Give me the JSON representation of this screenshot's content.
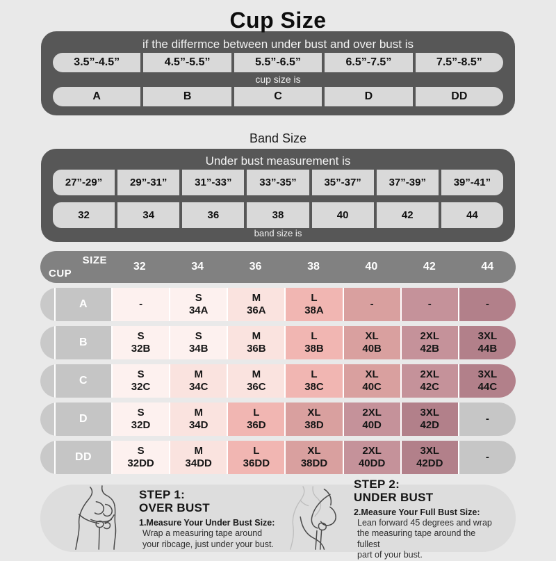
{
  "page": {
    "title": "Cup Size"
  },
  "cup_table": {
    "header": "if the differmce between under bust and over bust is",
    "ranges": [
      "3.5”-4.5”",
      "4.5”-5.5”",
      "5.5”-6.5”",
      "6.5”-7.5”",
      "7.5”-8.5”"
    ],
    "mid_label": "cup size is",
    "cups": [
      "A",
      "B",
      "C",
      "D",
      "DD"
    ]
  },
  "band_section": {
    "title": "Band Size",
    "header": "Under bust measurement is",
    "ranges": [
      "27”-29”",
      "29”-31”",
      "31”-33”",
      "33”-35”",
      "35”-37”",
      "37”-39”",
      "39”-41”"
    ],
    "bands": [
      "32",
      "34",
      "36",
      "38",
      "40",
      "42",
      "44"
    ],
    "footer_label": "band size is"
  },
  "size_matrix": {
    "corner": {
      "top": "SIZE",
      "bottom": "CUP"
    },
    "columns": [
      "32",
      "34",
      "36",
      "38",
      "40",
      "42",
      "44"
    ],
    "palette": {
      "s": "#fdf1ef",
      "m": "#fae3df",
      "l": "#f1b6b2",
      "xl": "#d9a09f",
      "xxl": "#c5929a",
      "xxxl": "#b2808a",
      "gray": "#c6c6c6"
    },
    "rows": [
      {
        "cup": "A",
        "cells": [
          {
            "size": "-",
            "code": "",
            "color": "s"
          },
          {
            "size": "S",
            "code": "34A",
            "color": "s"
          },
          {
            "size": "M",
            "code": "36A",
            "color": "m"
          },
          {
            "size": "L",
            "code": "38A",
            "color": "l"
          },
          {
            "size": "-",
            "code": "",
            "color": "xl"
          },
          {
            "size": "-",
            "code": "",
            "color": "xxl"
          },
          {
            "size": "-",
            "code": "",
            "color": "xxxl"
          }
        ]
      },
      {
        "cup": "B",
        "cells": [
          {
            "size": "S",
            "code": "32B",
            "color": "s"
          },
          {
            "size": "S",
            "code": "34B",
            "color": "s"
          },
          {
            "size": "M",
            "code": "36B",
            "color": "m"
          },
          {
            "size": "L",
            "code": "38B",
            "color": "l"
          },
          {
            "size": "XL",
            "code": "40B",
            "color": "xl"
          },
          {
            "size": "2XL",
            "code": "42B",
            "color": "xxl"
          },
          {
            "size": "3XL",
            "code": "44B",
            "color": "xxxl"
          }
        ]
      },
      {
        "cup": "C",
        "cells": [
          {
            "size": "S",
            "code": "32C",
            "color": "s"
          },
          {
            "size": "M",
            "code": "34C",
            "color": "m"
          },
          {
            "size": "M",
            "code": "36C",
            "color": "m"
          },
          {
            "size": "L",
            "code": "38C",
            "color": "l"
          },
          {
            "size": "XL",
            "code": "40C",
            "color": "xl"
          },
          {
            "size": "2XL",
            "code": "42C",
            "color": "xxl"
          },
          {
            "size": "3XL",
            "code": "44C",
            "color": "xxxl"
          }
        ]
      },
      {
        "cup": "D",
        "cells": [
          {
            "size": "S",
            "code": "32D",
            "color": "s"
          },
          {
            "size": "M",
            "code": "34D",
            "color": "m"
          },
          {
            "size": "L",
            "code": "36D",
            "color": "l"
          },
          {
            "size": "XL",
            "code": "38D",
            "color": "xl"
          },
          {
            "size": "2XL",
            "code": "40D",
            "color": "xxl"
          },
          {
            "size": "3XL",
            "code": "42D",
            "color": "xxxl"
          },
          {
            "size": "-",
            "code": "",
            "color": "gray"
          }
        ]
      },
      {
        "cup": "DD",
        "cells": [
          {
            "size": "S",
            "code": "32DD",
            "color": "s"
          },
          {
            "size": "M",
            "code": "34DD",
            "color": "m"
          },
          {
            "size": "L",
            "code": "36DD",
            "color": "l"
          },
          {
            "size": "XL",
            "code": "38DD",
            "color": "xl"
          },
          {
            "size": "2XL",
            "code": "40DD",
            "color": "xxl"
          },
          {
            "size": "3XL",
            "code": "42DD",
            "color": "xxxl"
          },
          {
            "size": "-",
            "code": "",
            "color": "gray"
          }
        ]
      }
    ]
  },
  "steps": [
    {
      "step": "STEP 1:",
      "name": "OVER BUST",
      "lead": "1.Measure Your Under Bust Size:",
      "body": "Wrap a measuring tape around\nyour ribcage, just under your bust."
    },
    {
      "step": "STEP 2:",
      "name": "UNDER BUST",
      "lead": "2.Measure Your Full Bust Size:",
      "body": "Lean forward 45 degrees and wrap\nthe measuring tape around the fullest\npart of your bust."
    }
  ]
}
